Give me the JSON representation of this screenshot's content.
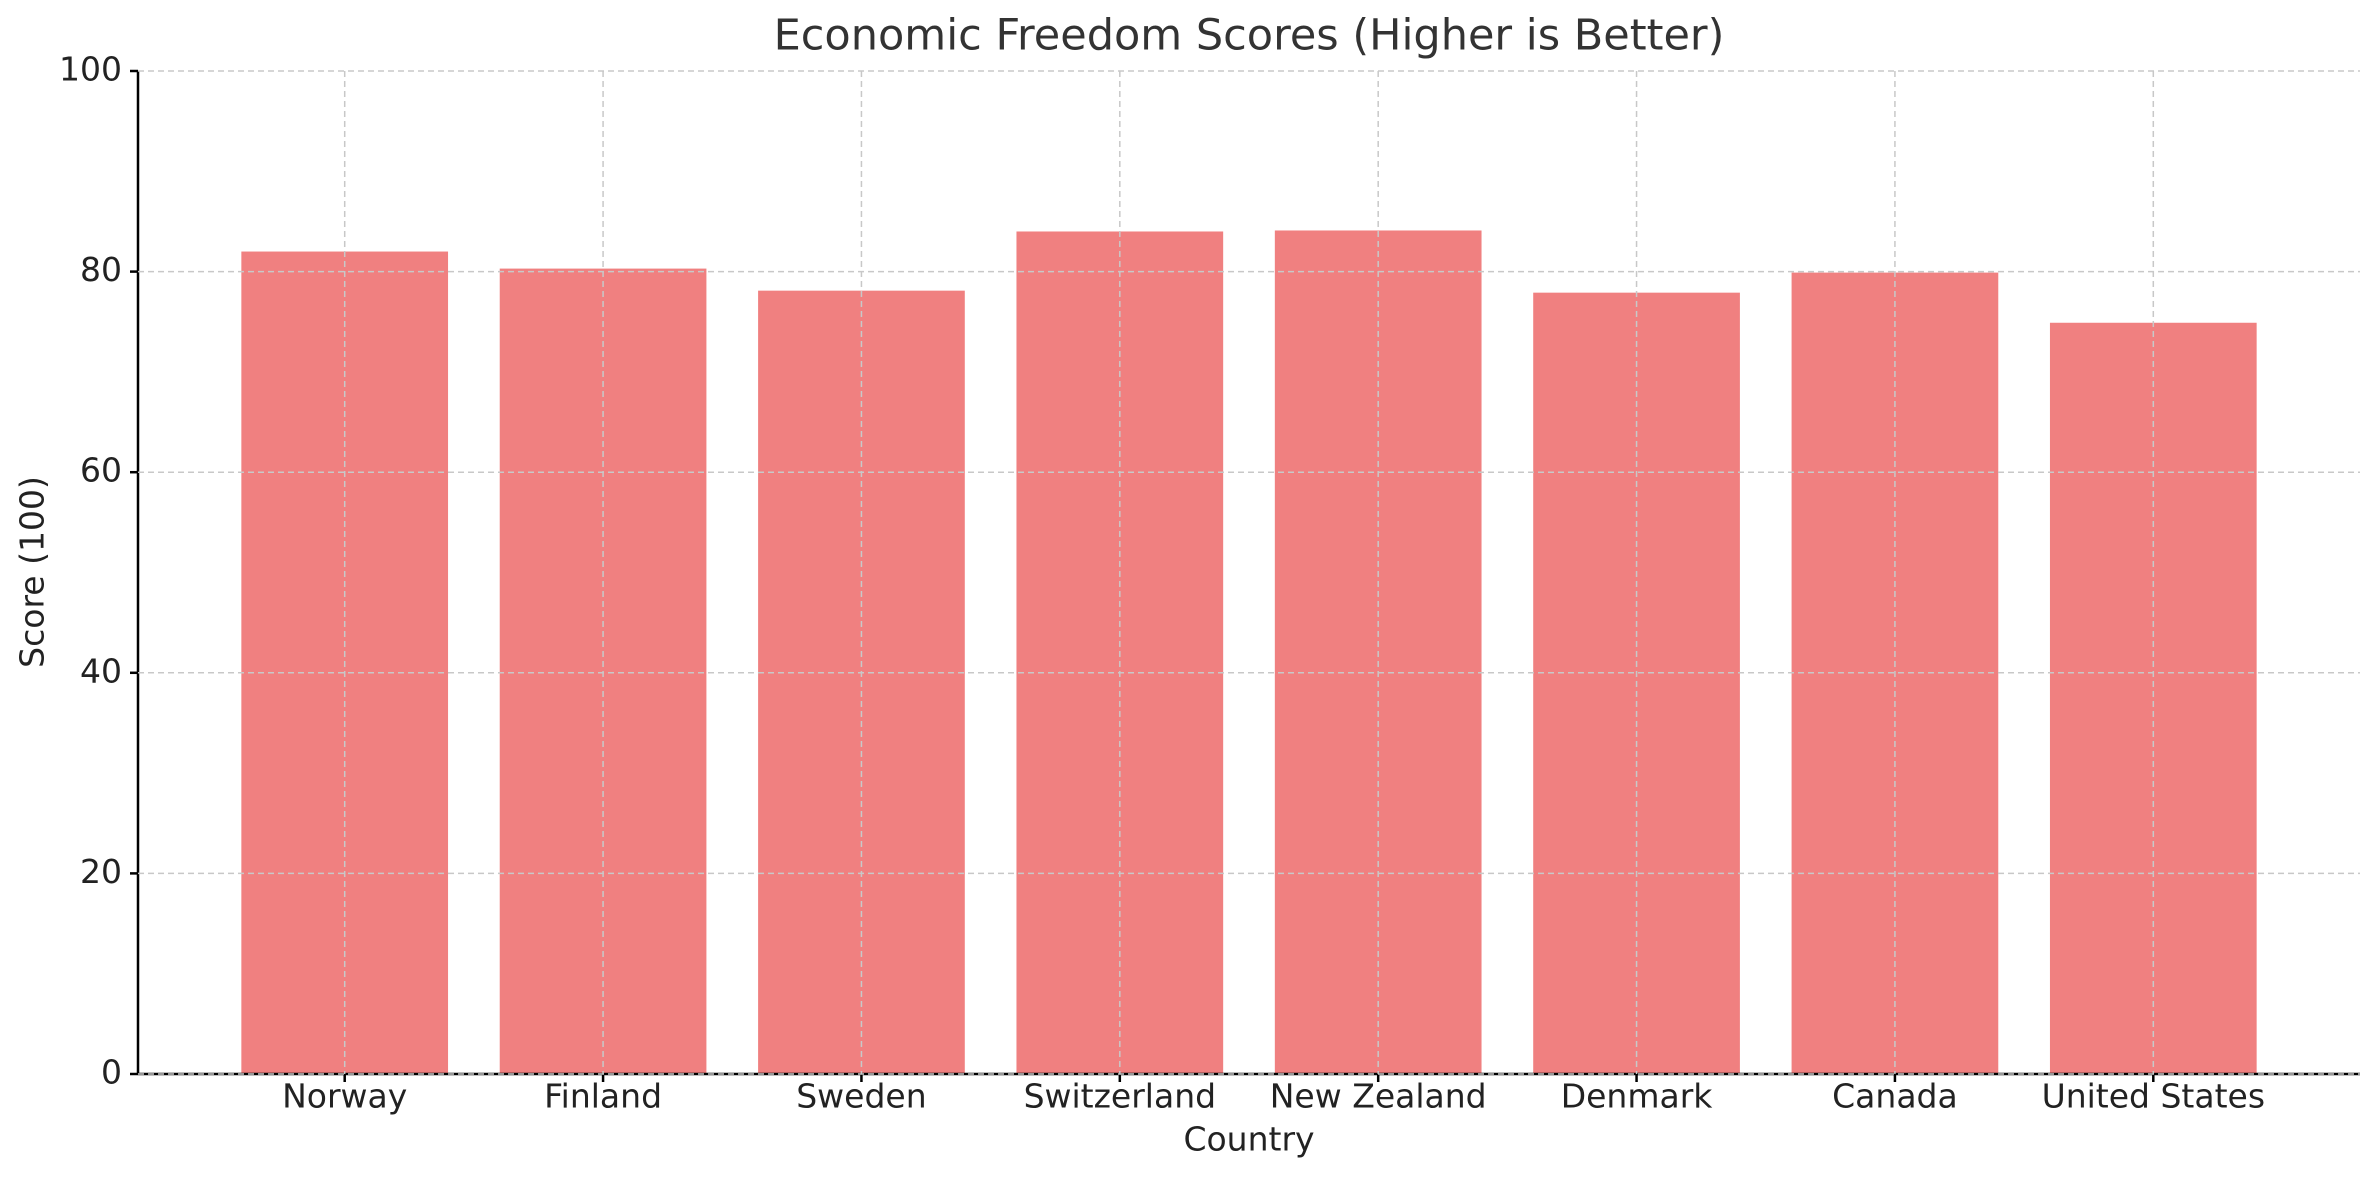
{
  "chart_data": {
    "type": "bar",
    "title": "Economic Freedom Scores (Higher is Better)",
    "x_label": "Country",
    "y_label": "Score (100)",
    "categories": [
      "Norway",
      "Finland",
      "Sweden",
      "Switzerland",
      "New Zealand",
      "Denmark",
      "Canada",
      "United States"
    ],
    "values": [
      82.0,
      80.3,
      78.1,
      84.0,
      84.1,
      77.9,
      79.9,
      74.9
    ],
    "color": "#f08080",
    "ylim": [
      0,
      100
    ],
    "yticks": [
      0,
      20,
      40,
      60,
      80,
      100
    ],
    "grid": true
  }
}
